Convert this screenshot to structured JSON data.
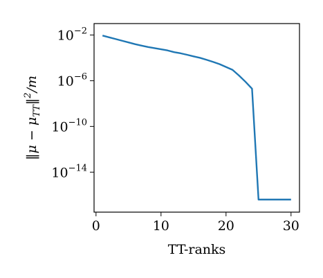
{
  "chart_data": {
    "type": "line",
    "xlabel": "TT-ranks",
    "ylabel": "||μ − μ_TT||² / m",
    "yscale": "log",
    "xlim": [
      -0.3,
      31.3
    ],
    "ylim_log10": [
      -17.5,
      -1.0
    ],
    "x_ticks": [
      0,
      10,
      20,
      30
    ],
    "y_ticks_log10": [
      -2,
      -6,
      -10,
      -14
    ],
    "grid": false,
    "series": [
      {
        "color": "#1f77b4",
        "x": [
          1,
          2,
          3,
          4,
          5,
          6,
          7,
          8,
          9,
          10,
          11,
          12,
          13,
          14,
          15,
          16,
          17,
          18,
          19,
          20,
          21,
          22,
          23,
          24,
          25,
          26,
          27,
          28,
          29,
          30
        ],
        "y_log10": [
          -2.05,
          -2.2,
          -2.35,
          -2.5,
          -2.65,
          -2.8,
          -2.93,
          -3.05,
          -3.15,
          -3.25,
          -3.35,
          -3.5,
          -3.6,
          -3.73,
          -3.87,
          -4.0,
          -4.17,
          -4.35,
          -4.55,
          -4.8,
          -5.05,
          -5.55,
          -6.1,
          -6.7,
          -16.4,
          -16.4,
          -16.4,
          -16.4,
          -16.4,
          -16.4
        ]
      }
    ]
  }
}
